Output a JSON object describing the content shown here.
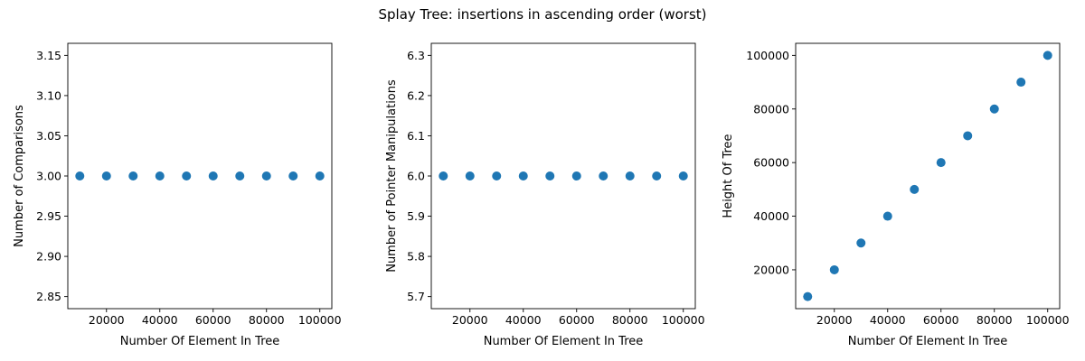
{
  "figure": {
    "suptitle": "Splay Tree: insertions in ascending order (worst)"
  },
  "chart_data": [
    {
      "type": "scatter",
      "title": "",
      "xlabel": "Number Of Element In Tree",
      "ylabel": "Number of Comparisons",
      "x": [
        10000,
        20000,
        30000,
        40000,
        50000,
        60000,
        70000,
        80000,
        90000,
        100000
      ],
      "y": [
        3,
        3,
        3,
        3,
        3,
        3,
        3,
        3,
        3,
        3
      ],
      "xlim": [
        5500,
        104500
      ],
      "ylim": [
        2.835,
        3.165
      ],
      "xticks": [
        20000,
        40000,
        60000,
        80000,
        100000
      ],
      "yticks": [
        2.85,
        2.9,
        2.95,
        3.0,
        3.05,
        3.1,
        3.15
      ],
      "ytick_labels": [
        "2.85",
        "2.90",
        "2.95",
        "3.00",
        "3.05",
        "3.10",
        "3.15"
      ],
      "marker_color": "#1f77b4"
    },
    {
      "type": "scatter",
      "title": "",
      "xlabel": "Number Of Element In Tree",
      "ylabel": "Number of Pointer Manipulations",
      "x": [
        10000,
        20000,
        30000,
        40000,
        50000,
        60000,
        70000,
        80000,
        90000,
        100000
      ],
      "y": [
        6,
        6,
        6,
        6,
        6,
        6,
        6,
        6,
        6,
        6
      ],
      "xlim": [
        5500,
        104500
      ],
      "ylim": [
        5.67,
        6.33
      ],
      "xticks": [
        20000,
        40000,
        60000,
        80000,
        100000
      ],
      "yticks": [
        5.7,
        5.8,
        5.9,
        6.0,
        6.1,
        6.2,
        6.3
      ],
      "ytick_labels": [
        "5.7",
        "5.8",
        "5.9",
        "6.0",
        "6.1",
        "6.2",
        "6.3"
      ],
      "marker_color": "#1f77b4"
    },
    {
      "type": "scatter",
      "title": "",
      "xlabel": "Number Of Element In Tree",
      "ylabel": "Height Of Tree",
      "x": [
        10000,
        20000,
        30000,
        40000,
        50000,
        60000,
        70000,
        80000,
        90000,
        100000
      ],
      "y": [
        10000,
        20000,
        30000,
        40000,
        50000,
        60000,
        70000,
        80000,
        90000,
        100000
      ],
      "xlim": [
        5500,
        104500
      ],
      "ylim": [
        5500,
        104500
      ],
      "xticks": [
        20000,
        40000,
        60000,
        80000,
        100000
      ],
      "yticks": [
        20000,
        40000,
        60000,
        80000,
        100000
      ],
      "ytick_labels": [
        "20000",
        "40000",
        "60000",
        "80000",
        "100000"
      ],
      "marker_color": "#1f77b4"
    }
  ]
}
